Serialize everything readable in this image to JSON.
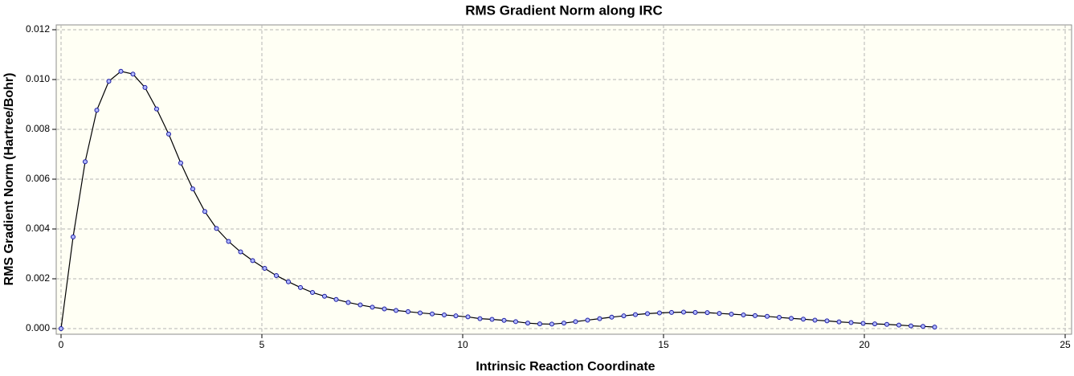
{
  "chart_data": {
    "type": "line",
    "title": "RMS Gradient Norm along IRC",
    "x_label": "Intrinsic Reaction Coordinate",
    "y_label": "RMS Gradient Norm (Hartree/Bohr)",
    "x": [
      0,
      0.3,
      0.6,
      0.89,
      1.19,
      1.49,
      1.79,
      2.09,
      2.38,
      2.68,
      2.98,
      3.28,
      3.58,
      3.87,
      4.17,
      4.47,
      4.77,
      5.07,
      5.36,
      5.66,
      5.96,
      6.26,
      6.56,
      6.85,
      7.15,
      7.45,
      7.75,
      8.05,
      8.34,
      8.64,
      8.94,
      9.24,
      9.54,
      9.83,
      10.13,
      10.43,
      10.73,
      11.03,
      11.32,
      11.62,
      11.92,
      12.22,
      12.52,
      12.81,
      13.11,
      13.41,
      13.71,
      14.01,
      14.3,
      14.6,
      14.9,
      15.2,
      15.5,
      15.79,
      16.09,
      16.39,
      16.69,
      16.99,
      17.28,
      17.58,
      17.88,
      18.18,
      18.48,
      18.77,
      19.07,
      19.37,
      19.67,
      19.97,
      20.26,
      20.56,
      20.86,
      21.16,
      21.46,
      21.75
    ],
    "series": [
      {
        "color": "#000000",
        "marker_color": "#1a1aa0",
        "values": [
          0,
          0.00368,
          0.0067,
          0.00877,
          0.00993,
          0.01033,
          0.01022,
          0.00968,
          0.00882,
          0.00781,
          0.00665,
          0.00561,
          0.0047,
          0.00402,
          0.0035,
          0.00308,
          0.00273,
          0.00242,
          0.00213,
          0.00188,
          0.00165,
          0.00145,
          0.0013,
          0.00117,
          0.00105,
          0.00095,
          0.00086,
          0.00079,
          0.00073,
          0.00068,
          0.00063,
          0.00059,
          0.00055,
          0.00051,
          0.00047,
          0.0004,
          0.00037,
          0.00033,
          0.00028,
          0.00022,
          0.00019,
          0.00018,
          0.00022,
          0.00028,
          0.00034,
          0.0004,
          0.00046,
          0.00051,
          0.00056,
          0.0006,
          0.00063,
          0.00065,
          0.00066,
          0.00065,
          0.00064,
          0.00061,
          0.00058,
          0.00055,
          0.00052,
          0.00049,
          0.00045,
          0.00041,
          0.00038,
          0.00034,
          0.00031,
          0.00027,
          0.00024,
          0.00021,
          0.00019,
          0.00017,
          0.00014,
          0.00011,
          9e-05,
          6e-05
        ]
      }
    ],
    "xlim": [
      -0.12,
      25.16
    ],
    "ylim": [
      -0.000226,
      0.012194
    ],
    "xticks": [
      0,
      5,
      10,
      15,
      20,
      25
    ],
    "yticks": [
      {
        "value": 0,
        "label": "0.000"
      },
      {
        "value": 0.002,
        "label": "0.002"
      },
      {
        "value": 0.004,
        "label": "0.004"
      },
      {
        "value": 0.006,
        "label": "0.006"
      },
      {
        "value": 0.008,
        "label": "0.008"
      },
      {
        "value": 0.01,
        "label": "0.010"
      },
      {
        "value": 0.012,
        "label": "0.012"
      }
    ],
    "grid": true,
    "plot_background": "#fffff4"
  }
}
